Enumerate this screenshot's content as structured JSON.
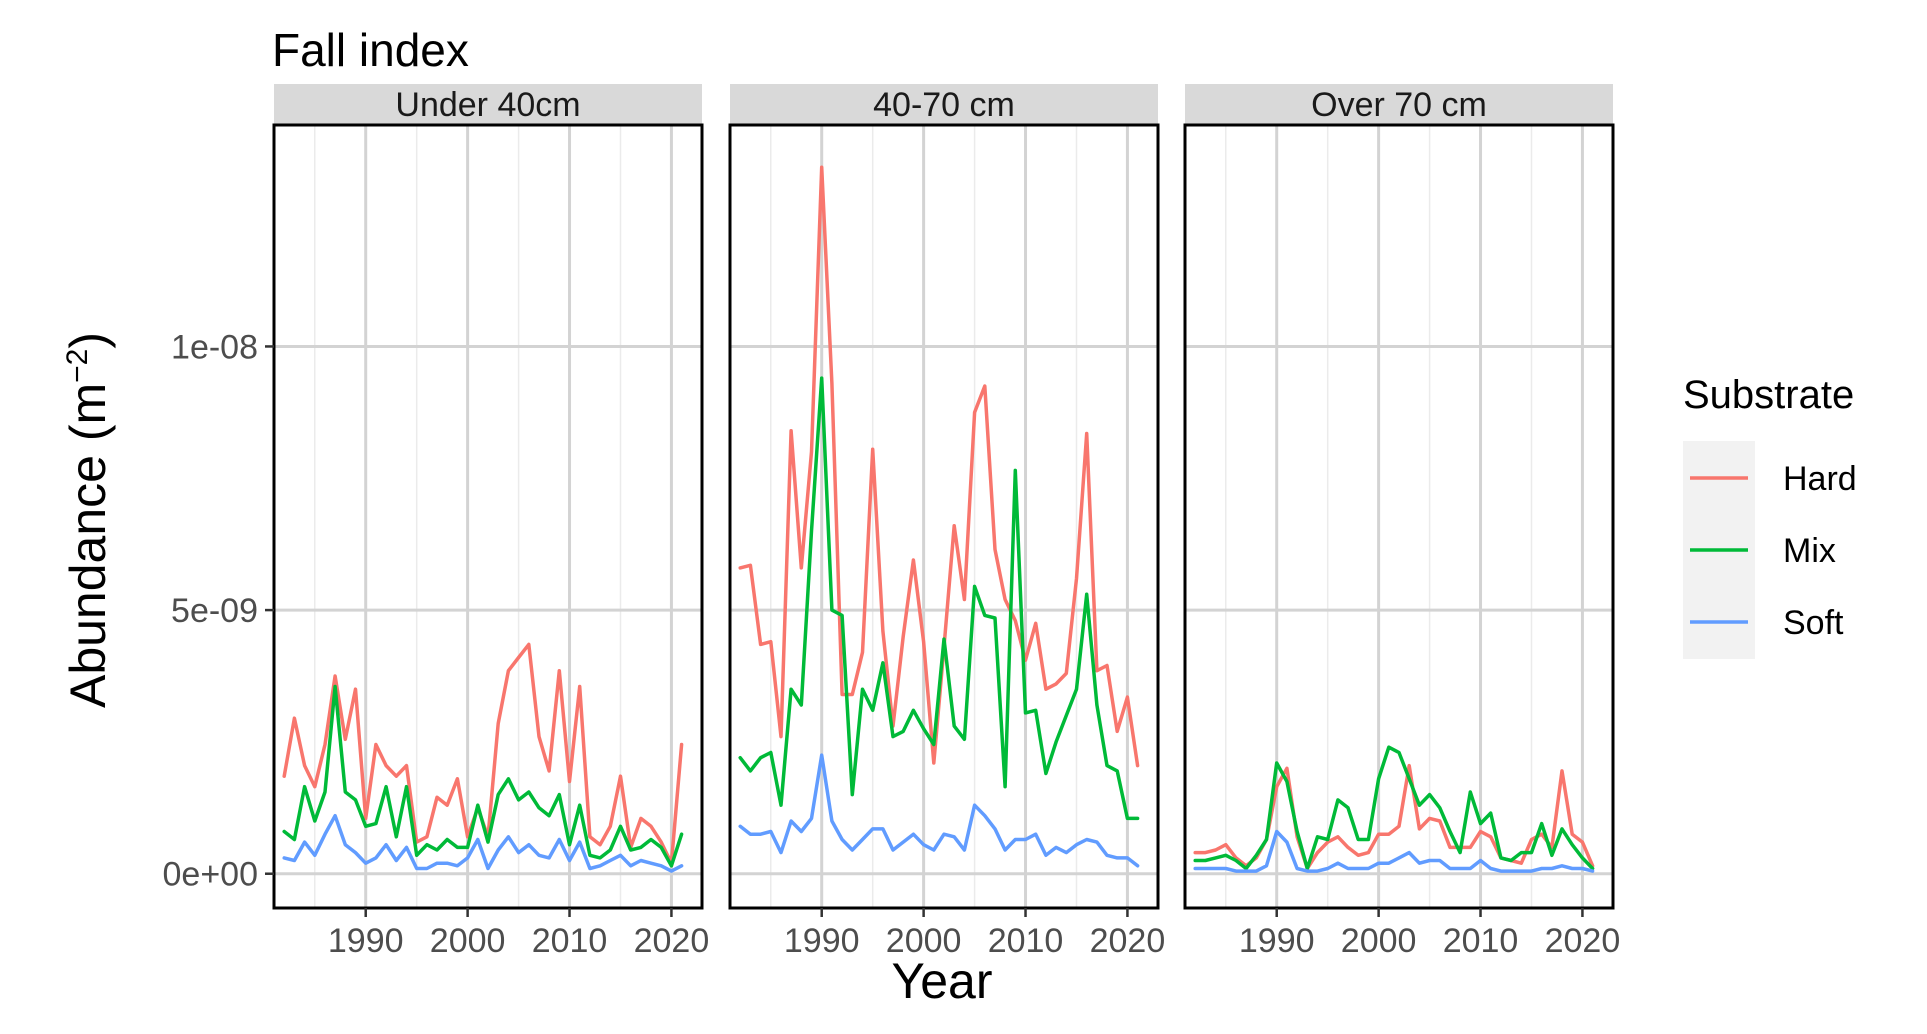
{
  "chart_data": {
    "type": "line",
    "title": "Fall index",
    "xlabel": "Year",
    "ylabel": "Abundance  (m",
    "ylabel_sup": "−2",
    "ylabel_close": ")",
    "xlim": [
      1981,
      2023
    ],
    "ylim": [
      -6.5e-10,
      1.42e-08
    ],
    "x_ticks": [
      1990,
      2000,
      2010,
      2020
    ],
    "x_tick_labels": [
      "1990",
      "2000",
      "2010",
      "2020"
    ],
    "y_ticks": [
      0,
      5e-09,
      1e-08
    ],
    "y_tick_labels": [
      "0e+00",
      "5e-09",
      "1e-08"
    ],
    "grid": true,
    "legend": {
      "title": "Substrate",
      "position": "right",
      "entries": [
        {
          "label": "Hard",
          "color": "#F8766D"
        },
        {
          "label": "Mix",
          "color": "#00BA38"
        },
        {
          "label": "Soft",
          "color": "#619CFF"
        }
      ]
    },
    "x": [
      1982,
      1983,
      1984,
      1985,
      1986,
      1987,
      1988,
      1989,
      1990,
      1991,
      1992,
      1993,
      1994,
      1995,
      1996,
      1997,
      1998,
      1999,
      2000,
      2001,
      2002,
      2003,
      2004,
      2005,
      2006,
      2007,
      2008,
      2009,
      2010,
      2011,
      2012,
      2013,
      2014,
      2015,
      2016,
      2017,
      2018,
      2019,
      2020,
      2021
    ],
    "panels": [
      {
        "label": "Under 40cm",
        "series": [
          {
            "name": "Hard",
            "color": "#F8766D",
            "values": [
              1.85e-09,
              2.95e-09,
              2.05e-09,
              1.65e-09,
              2.45e-09,
              3.75e-09,
              2.55e-09,
              3.5e-09,
              1.05e-09,
              2.45e-09,
              2.05e-09,
              1.85e-09,
              2.05e-09,
              6e-10,
              7e-10,
              1.45e-09,
              1.3e-09,
              1.8e-09,
              7e-10,
              1.25e-09,
              7e-10,
              2.85e-09,
              3.85e-09,
              4.1e-09,
              4.35e-09,
              2.6e-09,
              1.95e-09,
              3.85e-09,
              1.75e-09,
              3.55e-09,
              7e-10,
              5.5e-10,
              9e-10,
              1.85e-09,
              5e-10,
              1.05e-09,
              9e-10,
              6e-10,
              2e-10,
              2.45e-09
            ]
          },
          {
            "name": "Mix",
            "color": "#00BA38",
            "values": [
              8e-10,
              6.5e-10,
              1.65e-09,
              1e-09,
              1.55e-09,
              3.55e-09,
              1.55e-09,
              1.4e-09,
              9e-10,
              9.5e-10,
              1.65e-09,
              7e-10,
              1.65e-09,
              3.5e-10,
              5.5e-10,
              4.5e-10,
              6.5e-10,
              5e-10,
              5e-10,
              1.3e-09,
              6e-10,
              1.5e-09,
              1.8e-09,
              1.4e-09,
              1.55e-09,
              1.25e-09,
              1.1e-09,
              1.5e-09,
              5.5e-10,
              1.3e-09,
              3.5e-10,
              3e-10,
              4.5e-10,
              9e-10,
              4.5e-10,
              5e-10,
              6.5e-10,
              5e-10,
              1.5e-10,
              7.5e-10
            ]
          },
          {
            "name": "Soft",
            "color": "#619CFF",
            "values": [
              3e-10,
              2.5e-10,
              6e-10,
              3.5e-10,
              7.5e-10,
              1.1e-09,
              5.5e-10,
              4e-10,
              2e-10,
              3e-10,
              5.5e-10,
              2.5e-10,
              5e-10,
              1e-10,
              1e-10,
              2e-10,
              2e-10,
              1.5e-10,
              3e-10,
              6.5e-10,
              1e-10,
              4.5e-10,
              7e-10,
              4e-10,
              5.5e-10,
              3.5e-10,
              3e-10,
              6.5e-10,
              2.5e-10,
              6e-10,
              1e-10,
              1.5e-10,
              2.5e-10,
              3.5e-10,
              1.5e-10,
              2.5e-10,
              2e-10,
              1.5e-10,
              5e-11,
              1.5e-10
            ]
          }
        ]
      },
      {
        "label": "40-70 cm",
        "series": [
          {
            "name": "Hard",
            "color": "#F8766D",
            "values": [
              5.8e-09,
              5.85e-09,
              4.35e-09,
              4.4e-09,
              2.6e-09,
              8.4e-09,
              5.8e-09,
              8e-09,
              1.34e-08,
              9.3e-09,
              3.4e-09,
              3.4e-09,
              4.2e-09,
              8.05e-09,
              4.6e-09,
              2.8e-09,
              4.5e-09,
              5.95e-09,
              4.4e-09,
              2.1e-09,
              4.3e-09,
              6.6e-09,
              5.2e-09,
              8.75e-09,
              9.25e-09,
              6.15e-09,
              5.2e-09,
              4.8e-09,
              4.05e-09,
              4.75e-09,
              3.5e-09,
              3.6e-09,
              3.8e-09,
              5.6e-09,
              8.35e-09,
              3.85e-09,
              3.95e-09,
              2.7e-09,
              3.35e-09,
              2.05e-09
            ]
          },
          {
            "name": "Mix",
            "color": "#00BA38",
            "values": [
              2.2e-09,
              1.95e-09,
              2.2e-09,
              2.3e-09,
              1.3e-09,
              3.5e-09,
              3.2e-09,
              6.5e-09,
              9.4e-09,
              5e-09,
              4.9e-09,
              1.5e-09,
              3.5e-09,
              3.1e-09,
              4e-09,
              2.6e-09,
              2.7e-09,
              3.1e-09,
              2.75e-09,
              2.45e-09,
              4.45e-09,
              2.8e-09,
              2.55e-09,
              5.45e-09,
              4.9e-09,
              4.85e-09,
              1.65e-09,
              7.65e-09,
              3.05e-09,
              3.1e-09,
              1.9e-09,
              2.5e-09,
              3e-09,
              3.5e-09,
              5.3e-09,
              3.2e-09,
              2.05e-09,
              1.95e-09,
              1.05e-09,
              1.05e-09
            ]
          },
          {
            "name": "Soft",
            "color": "#619CFF",
            "values": [
              9e-10,
              7.5e-10,
              7.5e-10,
              8e-10,
              4e-10,
              1e-09,
              8e-10,
              1.05e-09,
              2.25e-09,
              1e-09,
              6.5e-10,
              4.5e-10,
              6.5e-10,
              8.5e-10,
              8.5e-10,
              4.5e-10,
              6e-10,
              7.5e-10,
              5.5e-10,
              4.5e-10,
              7.5e-10,
              7e-10,
              4.5e-10,
              1.3e-09,
              1.1e-09,
              8.5e-10,
              4.5e-10,
              6.5e-10,
              6.5e-10,
              7.5e-10,
              3.5e-10,
              5e-10,
              4e-10,
              5.5e-10,
              6.5e-10,
              6e-10,
              3.5e-10,
              3e-10,
              3e-10,
              1.5e-10
            ]
          }
        ]
      },
      {
        "label": "Over 70 cm",
        "series": [
          {
            "name": "Hard",
            "color": "#F8766D",
            "values": [
              4e-10,
              4e-10,
              4.5e-10,
              5.5e-10,
              3e-10,
              1.5e-10,
              3e-10,
              6.5e-10,
              1.65e-09,
              2e-09,
              7e-10,
              1e-10,
              4e-10,
              6e-10,
              7e-10,
              5e-10,
              3.5e-10,
              4e-10,
              7.5e-10,
              7.5e-10,
              9e-10,
              2.05e-09,
              8.5e-10,
              1.05e-09,
              1e-09,
              5e-10,
              5e-10,
              5e-10,
              8e-10,
              7e-10,
              3e-10,
              2.5e-10,
              2e-10,
              6.5e-10,
              7.5e-10,
              5e-10,
              1.95e-09,
              7.5e-10,
              6e-10,
              1.5e-10
            ]
          },
          {
            "name": "Mix",
            "color": "#00BA38",
            "values": [
              2.5e-10,
              2.5e-10,
              3e-10,
              3.5e-10,
              2.5e-10,
              1e-10,
              3.5e-10,
              6.5e-10,
              2.1e-09,
              1.75e-09,
              8e-10,
              1e-10,
              7e-10,
              6.5e-10,
              1.4e-09,
              1.25e-09,
              6.5e-10,
              6.5e-10,
              1.8e-09,
              2.4e-09,
              2.3e-09,
              1.8e-09,
              1.3e-09,
              1.5e-09,
              1.25e-09,
              8e-10,
              4e-10,
              1.55e-09,
              9.5e-10,
              1.15e-09,
              3e-10,
              2.5e-10,
              4e-10,
              4e-10,
              9.5e-10,
              3.5e-10,
              8.5e-10,
              5.5e-10,
              3e-10,
              1e-10
            ]
          },
          {
            "name": "Soft",
            "color": "#619CFF",
            "values": [
              1e-10,
              1e-10,
              1e-10,
              1e-10,
              5e-11,
              5e-11,
              5e-11,
              1.5e-10,
              8e-10,
              6e-10,
              1e-10,
              5e-11,
              5e-11,
              1e-10,
              2e-10,
              1e-10,
              1e-10,
              1e-10,
              2e-10,
              2e-10,
              3e-10,
              4e-10,
              2e-10,
              2.5e-10,
              2.5e-10,
              1e-10,
              1e-10,
              1e-10,
              2.5e-10,
              1e-10,
              5e-11,
              5e-11,
              5e-11,
              5e-11,
              1e-10,
              1e-10,
              1.5e-10,
              1e-10,
              1e-10,
              5e-11
            ]
          }
        ]
      }
    ]
  }
}
